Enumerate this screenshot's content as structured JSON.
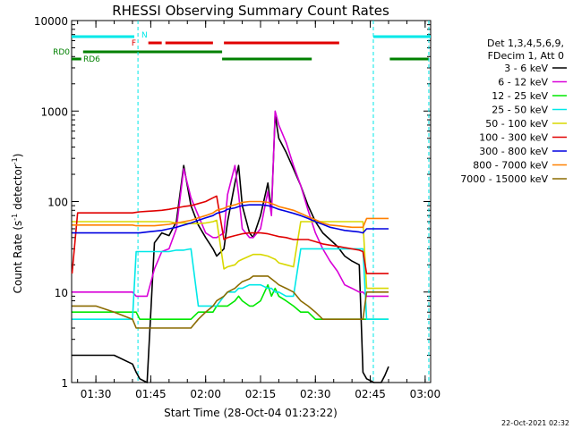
{
  "chart_data": {
    "type": "line",
    "title": "RHESSI Observing Summary Count Rates",
    "xlabel": "Start Time (28-Oct-04 01:23:22)",
    "ylabel": "Count Rate (s⁻¹ detector⁻¹)",
    "ylabel_parts": {
      "main": "Count Rate (s",
      "sup1": "-1",
      "mid": " detector",
      "sup2": "-1",
      "end": ")"
    },
    "yscale": "log",
    "ylim": [
      1,
      10000
    ],
    "xlim": [
      "01:23:22",
      "03:01:30"
    ],
    "x_ticks": [
      "01:30",
      "01:45",
      "02:00",
      "02:15",
      "02:30",
      "02:45",
      "03:00"
    ],
    "y_ticks": [
      "1",
      "10",
      "100",
      "1000",
      "10000"
    ],
    "legend_header": [
      "Det 1,3,4,5,6,9,",
      "FDecim 1, Att 0"
    ],
    "legend_position": "right",
    "timestamp": "22-Oct-2021 02:32",
    "flags": [
      {
        "label": "N",
        "color": "#00e8e8",
        "intervals": [
          [
            "01:23:22",
            "01:40:30"
          ],
          [
            "02:45:50",
            "03:01:30"
          ]
        ]
      },
      {
        "label": "F",
        "color": "#e00000",
        "intervals": [
          [
            "01:44:20",
            "01:48:00"
          ],
          [
            "01:49:00",
            "02:02:00"
          ],
          [
            "02:05:00",
            "02:36:30"
          ]
        ]
      },
      {
        "label": "RD0",
        "color": "#008000",
        "intervals": [
          [
            "01:26:30",
            "02:04:30"
          ]
        ]
      },
      {
        "label": "RD6",
        "color": "#008000",
        "intervals": [
          [
            "01:23:22",
            "01:26:00"
          ],
          [
            "02:04:30",
            "02:29:00"
          ],
          [
            "02:50:20",
            "03:01:00"
          ]
        ]
      }
    ],
    "series": [
      {
        "name": "3 - 6 keV",
        "color": "#000000",
        "x": [
          "01:23:30",
          "01:25",
          "01:30",
          "01:35",
          "01:40",
          "01:41",
          "01:42",
          "01:44",
          "01:46",
          "01:48",
          "01:50",
          "01:52",
          "01:54",
          "01:56",
          "01:58",
          "02:00",
          "02:02",
          "02:03",
          "02:05",
          "02:06",
          "02:08",
          "02:09",
          "02:10",
          "02:12",
          "02:13",
          "02:15",
          "02:17",
          "02:18",
          "02:19",
          "02:20",
          "02:22",
          "02:24",
          "02:26",
          "02:28",
          "02:30",
          "02:32",
          "02:34",
          "02:36",
          "02:38",
          "02:40",
          "02:42",
          "02:43",
          "02:44",
          "02:46",
          "02:48",
          "02:49",
          "02:50"
        ],
        "values": [
          2,
          2,
          2,
          2,
          1.6,
          1.3,
          1.1,
          1,
          35,
          45,
          42,
          60,
          250,
          90,
          55,
          40,
          30,
          25,
          30,
          60,
          160,
          250,
          90,
          45,
          40,
          70,
          160,
          80,
          900,
          500,
          350,
          230,
          150,
          90,
          60,
          45,
          38,
          32,
          25,
          22,
          20,
          1.3,
          1.1,
          1,
          1,
          1.2,
          1.5
        ]
      },
      {
        "name": "6 - 12 keV",
        "color": "#d800d8",
        "values": [
          10,
          10,
          10,
          10,
          10,
          9,
          9,
          9,
          18,
          28,
          30,
          50,
          230,
          110,
          70,
          45,
          40,
          40,
          45,
          120,
          250,
          120,
          50,
          40,
          40,
          50,
          130,
          70,
          1000,
          700,
          450,
          250,
          150,
          80,
          45,
          30,
          22,
          17,
          12,
          11,
          10,
          10,
          9,
          9,
          9,
          9,
          9
        ]
      },
      {
        "name": "12 - 25 keV",
        "color": "#00e800",
        "values": [
          6,
          6,
          6,
          6,
          6,
          6,
          5,
          5,
          5,
          5,
          5,
          5,
          5,
          5,
          6,
          6,
          6,
          7,
          7,
          7,
          8,
          9,
          8,
          7,
          7,
          8,
          12,
          9,
          11,
          9,
          8,
          7,
          6,
          6,
          5,
          5,
          5,
          5,
          5,
          5,
          5,
          5,
          5,
          5,
          5,
          5,
          5
        ]
      },
      {
        "name": "25 - 50 keV",
        "color": "#00e8e8",
        "values": [
          5,
          5,
          5,
          5,
          5,
          28,
          28,
          28,
          28,
          28,
          28,
          29,
          29,
          30,
          7,
          7,
          7,
          7,
          9,
          10,
          10,
          11,
          11,
          12,
          12,
          12,
          11,
          11,
          10,
          10,
          9,
          9,
          30,
          30,
          30,
          30,
          30,
          30,
          30,
          30,
          30,
          30,
          5,
          5,
          5,
          5,
          5
        ]
      },
      {
        "name": "50 - 100 keV",
        "color": "#d8d800",
        "values": [
          60,
          60,
          60,
          60,
          60,
          60,
          60,
          60,
          60,
          60,
          60,
          58,
          58,
          57,
          57,
          58,
          60,
          62,
          18,
          19,
          20,
          22,
          23,
          25,
          26,
          26,
          25,
          24,
          23,
          21,
          20,
          19,
          60,
          60,
          60,
          60,
          60,
          60,
          60,
          60,
          60,
          60,
          11,
          11,
          11,
          11,
          11
        ]
      },
      {
        "name": "100 - 300 keV",
        "color": "#e00000",
        "values": [
          16,
          75,
          75,
          75,
          75,
          76,
          77,
          78,
          79,
          80,
          82,
          85,
          88,
          90,
          95,
          100,
          110,
          115,
          38,
          40,
          42,
          43,
          44,
          45,
          45,
          45,
          44,
          43,
          42,
          41,
          40,
          38,
          38,
          38,
          36,
          34,
          33,
          32,
          31,
          30,
          29,
          28,
          16,
          16,
          16,
          16,
          16
        ]
      },
      {
        "name": "300 - 800 keV",
        "color": "#0000e0",
        "values": [
          45,
          45,
          45,
          45,
          45,
          45,
          45,
          46,
          47,
          48,
          50,
          52,
          55,
          58,
          62,
          66,
          70,
          74,
          78,
          82,
          85,
          88,
          90,
          92,
          92,
          92,
          90,
          88,
          85,
          82,
          78,
          74,
          70,
          65,
          60,
          56,
          52,
          50,
          48,
          47,
          46,
          45,
          50,
          50,
          50,
          50,
          50
        ]
      },
      {
        "name": "800 - 7000 keV",
        "color": "#ff8000",
        "values": [
          55,
          55,
          55,
          55,
          55,
          54,
          54,
          54,
          54,
          55,
          56,
          58,
          60,
          62,
          66,
          70,
          75,
          80,
          84,
          88,
          92,
          95,
          98,
          100,
          100,
          100,
          98,
          95,
          92,
          88,
          84,
          80,
          74,
          68,
          63,
          58,
          55,
          54,
          53,
          52,
          52,
          52,
          65,
          65,
          65,
          65,
          65
        ]
      },
      {
        "name": "7000 - 15000 keV",
        "color": "#8b6b00",
        "values": [
          7,
          7,
          7,
          6,
          5,
          4,
          4,
          4,
          4,
          4,
          4,
          4,
          4,
          4,
          5,
          6,
          7,
          8,
          9,
          10,
          11,
          12,
          13,
          14,
          15,
          15,
          15,
          14,
          13,
          12,
          11,
          10,
          8,
          7,
          6,
          5,
          5,
          5,
          5,
          5,
          5,
          5,
          10,
          10,
          10,
          10,
          10
        ]
      }
    ]
  }
}
